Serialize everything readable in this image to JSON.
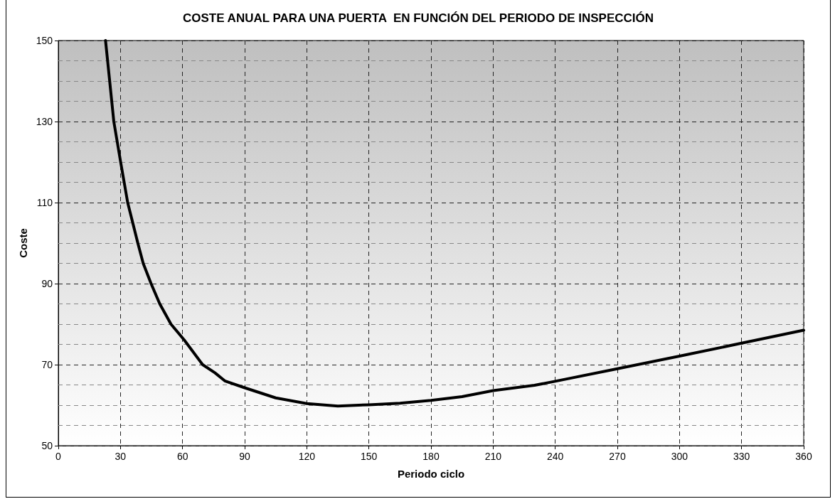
{
  "chart_data": {
    "type": "line",
    "title": "COSTE ANUAL PARA UNA PUERTA  EN FUNCIÓN DEL PERIODO DE INSPECCIÓN",
    "xlabel": "Periodo ciclo",
    "ylabel": "Coste",
    "x": [
      22.8,
      26.8,
      30.1,
      33.5,
      38.4,
      41,
      44.8,
      49,
      54.4,
      60.8,
      69.7,
      75.6,
      80.4,
      90,
      105,
      120,
      135,
      150,
      165,
      180,
      195,
      210,
      230,
      240,
      270,
      300,
      330,
      360
    ],
    "series": [
      {
        "color": "#000000",
        "values": [
          150,
          130,
          120,
          110,
          100,
          95,
          90,
          85,
          80,
          76.1,
          70,
          68,
          66,
          64.3,
          61.8,
          60.4,
          59.8,
          60.1,
          60.5,
          61.2,
          62.1,
          63.6,
          64.9,
          65.9,
          69,
          72.1,
          75.3,
          78.5
        ]
      }
    ],
    "xlim": [
      0,
      360
    ],
    "xticks": [
      0,
      30,
      60,
      90,
      120,
      150,
      180,
      210,
      240,
      270,
      300,
      330,
      360
    ],
    "ylim": [
      50,
      150
    ],
    "yticks": [
      50,
      {
        "value": 55,
        "label": null
      },
      {
        "value": 60,
        "label": null
      },
      {
        "value": 65,
        "label": null
      },
      70,
      {
        "value": 75,
        "label": null
      },
      {
        "value": 80,
        "label": null
      },
      {
        "value": 85,
        "label": null
      },
      90,
      {
        "value": 95,
        "label": null
      },
      {
        "value": 100,
        "label": null
      },
      {
        "value": 105,
        "label": null
      },
      110,
      {
        "value": 115,
        "label": null
      },
      {
        "value": 120,
        "label": null
      },
      {
        "value": 125,
        "label": null
      },
      130,
      {
        "value": 135,
        "label": null
      },
      {
        "value": 140,
        "label": null
      },
      {
        "value": 145,
        "label": null
      },
      150
    ],
    "grid": true,
    "marker": "none",
    "line_style": "solid"
  }
}
